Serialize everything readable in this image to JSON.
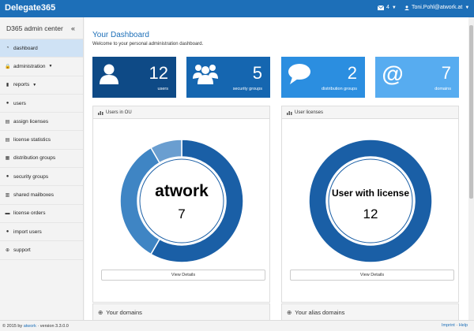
{
  "header": {
    "brand": "Delegate365",
    "mail_count": "4",
    "user": "Toni.Pohl@atwork.at"
  },
  "sidebar": {
    "title": "D365 admin center",
    "toggle": "«",
    "items": [
      {
        "label": "dashboard",
        "icon": "dashboard-icon"
      },
      {
        "label": "administration",
        "icon": "lock-icon",
        "has_caret": true
      },
      {
        "label": "reports",
        "icon": "bar-chart-icon",
        "has_caret": true
      },
      {
        "label": "users",
        "icon": "user-icon"
      },
      {
        "label": "assign licenses",
        "icon": "license-icon"
      },
      {
        "label": "license statistics",
        "icon": "license-stats-icon"
      },
      {
        "label": "distribution groups",
        "icon": "distribution-icon"
      },
      {
        "label": "security groups",
        "icon": "group-icon"
      },
      {
        "label": "shared mailboxes",
        "icon": "mailbox-icon"
      },
      {
        "label": "license orders",
        "icon": "cart-icon"
      },
      {
        "label": "import users",
        "icon": "import-icon"
      },
      {
        "label": "support",
        "icon": "support-icon"
      }
    ]
  },
  "main": {
    "title": "Your Dashboard",
    "subtitle": "Welcome to your personal administration dashboard.",
    "stats": [
      {
        "value": "12",
        "label": "users",
        "color": "#0e4a86",
        "icon": "user-icon"
      },
      {
        "value": "5",
        "label": "security groups",
        "color": "#1566b0",
        "icon": "group-icon"
      },
      {
        "value": "2",
        "label": "distribution groups",
        "color": "#2b8ee0",
        "icon": "chat-bubble-icon"
      },
      {
        "value": "7",
        "label": "domains",
        "color": "#57acf0",
        "icon": "at-icon"
      }
    ],
    "panels": [
      {
        "title": "Users in OU",
        "center_label": "atwork",
        "center_value": "7",
        "button": "View Details"
      },
      {
        "title": "User licenses",
        "center_label": "User with license",
        "center_value": "12",
        "button": "View Details"
      }
    ],
    "lower_panels": [
      "Your domains",
      "Your alias domains"
    ]
  },
  "chart_data": [
    {
      "type": "pie",
      "title": "Users in OU",
      "slices": [
        {
          "label": "atwork",
          "value": 7,
          "color": "#1a5fa6"
        },
        {
          "label": "",
          "value": 4,
          "color": "#3f85c4"
        },
        {
          "label": "",
          "value": 1,
          "color": "#6a9ed0"
        }
      ]
    },
    {
      "type": "pie",
      "title": "User licenses",
      "slices": [
        {
          "label": "User with license",
          "value": 12,
          "color": "#1a5fa6"
        }
      ]
    }
  ],
  "footer": {
    "prefix": "© 2015 by",
    "link": "atwork",
    "version": "· version 3.3.0.0",
    "imprint": "Imprint",
    "sep": "·",
    "help": "Help"
  }
}
